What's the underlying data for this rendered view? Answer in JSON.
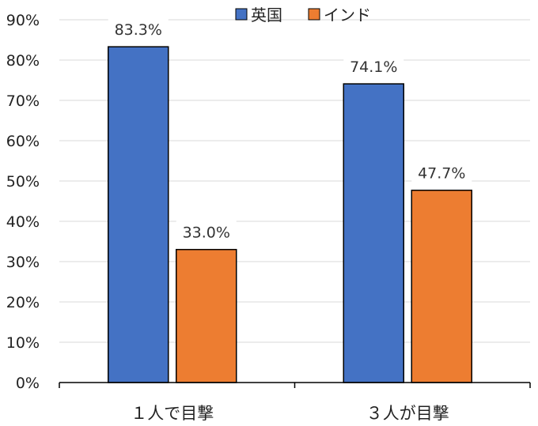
{
  "chart_data": {
    "type": "bar",
    "categories": [
      "１人で目撃",
      "３人が目撃"
    ],
    "series": [
      {
        "name": "英国",
        "values": [
          83.3,
          74.1
        ],
        "color": "#4472C4"
      },
      {
        "name": "インド",
        "values": [
          33.0,
          47.7
        ],
        "color": "#ED7D31"
      }
    ],
    "data_labels": [
      [
        "83.3%",
        "74.1%"
      ],
      [
        "33.0%",
        "47.7%"
      ]
    ],
    "yticks": [
      "0%",
      "10%",
      "20%",
      "30%",
      "40%",
      "50%",
      "60%",
      "70%",
      "80%",
      "90%"
    ],
    "ylim": [
      0,
      90
    ],
    "grid": true,
    "legend_position": "top"
  }
}
